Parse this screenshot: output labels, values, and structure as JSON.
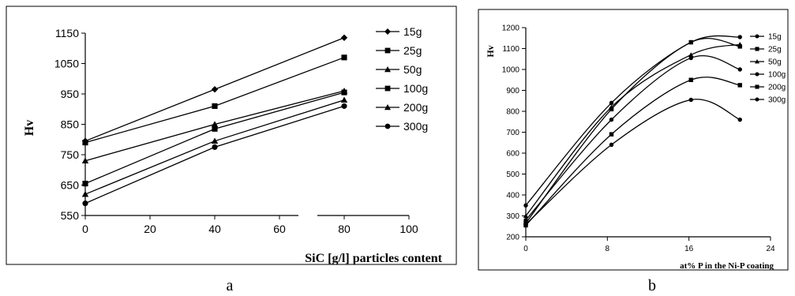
{
  "chart_data": [
    {
      "type": "line",
      "panel_caption": "a",
      "ylabel": "Hv",
      "xlabel": "SiC [g/l] particles content",
      "xlim": [
        0,
        100
      ],
      "ylim": [
        550,
        1150
      ],
      "x_ticks": [
        0,
        20,
        40,
        60,
        80,
        100
      ],
      "y_ticks": [
        550,
        650,
        750,
        850,
        950,
        1050,
        1150
      ],
      "legend_position": "right",
      "series": [
        {
          "name": "15g",
          "marker": "diamond",
          "x": [
            0,
            40,
            80
          ],
          "y": [
            795,
            965,
            1135
          ]
        },
        {
          "name": "25g",
          "marker": "square",
          "x": [
            0,
            40,
            80
          ],
          "y": [
            790,
            910,
            1070
          ]
        },
        {
          "name": "50g",
          "marker": "triangle",
          "x": [
            0,
            40,
            80
          ],
          "y": [
            730,
            850,
            960
          ]
        },
        {
          "name": "100g",
          "marker": "square",
          "x": [
            0,
            40,
            80
          ],
          "y": [
            655,
            835,
            955
          ]
        },
        {
          "name": "200g",
          "marker": "triangle",
          "x": [
            0,
            40,
            80
          ],
          "y": [
            620,
            795,
            930
          ]
        },
        {
          "name": "300g",
          "marker": "circle",
          "x": [
            0,
            40,
            80
          ],
          "y": [
            590,
            775,
            910
          ]
        }
      ]
    },
    {
      "type": "line",
      "panel_caption": "b",
      "ylabel": "Hv",
      "xlabel": "at% P in the Ni-P coating",
      "xlim": [
        0,
        24
      ],
      "ylim": [
        200,
        1200
      ],
      "x_ticks": [
        0,
        8,
        16,
        24
      ],
      "y_ticks": [
        200,
        300,
        400,
        500,
        600,
        700,
        800,
        900,
        1000,
        1100,
        1200
      ],
      "legend_position": "right",
      "series": [
        {
          "name": "15g",
          "marker": "circle",
          "x": [
            0,
            8.4,
            16.2,
            21
          ],
          "y": [
            350,
            840,
            1130,
            1155
          ]
        },
        {
          "name": "25g",
          "marker": "square",
          "x": [
            0,
            8.4,
            16.2,
            21
          ],
          "y": [
            265,
            810,
            1130,
            1110
          ]
        },
        {
          "name": "50g",
          "marker": "triangle",
          "x": [
            0,
            8.4,
            16.2,
            21
          ],
          "y": [
            300,
            820,
            1070,
            1120
          ]
        },
        {
          "name": "100g",
          "marker": "circle",
          "x": [
            0,
            8.4,
            16.2,
            21
          ],
          "y": [
            280,
            760,
            1055,
            1000
          ]
        },
        {
          "name": "200g",
          "marker": "square",
          "x": [
            0,
            8.4,
            16.2,
            21
          ],
          "y": [
            255,
            690,
            950,
            925
          ]
        },
        {
          "name": "300g",
          "marker": "circle",
          "x": [
            0,
            8.4,
            16.2,
            21
          ],
          "y": [
            260,
            640,
            855,
            760
          ]
        }
      ]
    }
  ]
}
